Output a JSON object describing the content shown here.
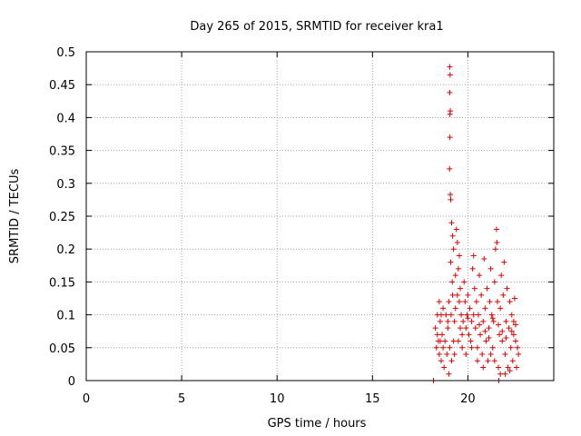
{
  "chart_data": {
    "type": "scatter",
    "title": "Day 265 of 2015, SRMTID for receiver kra1",
    "xlabel": "GPS time / hours",
    "ylabel": "SRMTID / TECUs",
    "xlim": [
      0,
      24.5
    ],
    "ylim": [
      0,
      0.5
    ],
    "xticks": [
      0,
      5,
      10,
      15,
      20
    ],
    "yticks": [
      0,
      0.05,
      0.1,
      0.15,
      0.2,
      0.25,
      0.3,
      0.35,
      0.4,
      0.45,
      0.5
    ],
    "ytick_labels": [
      "0",
      "0.05",
      "0.1",
      "0.15",
      "0.2",
      "0.25",
      "0.3",
      "0.35",
      "0.4",
      "0.45",
      "0.5"
    ],
    "grid": true,
    "marker": "plus",
    "series_color": "#e00000",
    "series": [
      {
        "name": "SRMTID",
        "points": [
          [
            18.2,
            0.0
          ],
          [
            18.3,
            0.08
          ],
          [
            18.35,
            0.05
          ],
          [
            18.4,
            0.1
          ],
          [
            18.45,
            0.06
          ],
          [
            18.5,
            0.04
          ],
          [
            18.55,
            0.09
          ],
          [
            18.6,
            0.03
          ],
          [
            18.65,
            0.07
          ],
          [
            18.7,
            0.05
          ],
          [
            18.75,
            0.02
          ],
          [
            18.8,
            0.06
          ],
          [
            18.85,
            0.1
          ],
          [
            18.9,
            0.04
          ],
          [
            18.95,
            0.08
          ],
          [
            19.0,
            0.01
          ],
          [
            19.0,
            0.12
          ],
          [
            19.05,
            0.05
          ],
          [
            18.5,
            0.12
          ],
          [
            18.6,
            0.1
          ],
          [
            18.7,
            0.11
          ],
          [
            18.4,
            0.07
          ],
          [
            18.55,
            0.06
          ],
          [
            18.95,
            0.09
          ],
          [
            19.05,
            0.477
          ],
          [
            19.07,
            0.465
          ],
          [
            19.05,
            0.438
          ],
          [
            19.08,
            0.41
          ],
          [
            19.06,
            0.405
          ],
          [
            19.06,
            0.37
          ],
          [
            19.04,
            0.322
          ],
          [
            19.08,
            0.283
          ],
          [
            19.1,
            0.275
          ],
          [
            19.15,
            0.24
          ],
          [
            19.2,
            0.22
          ],
          [
            19.25,
            0.2
          ],
          [
            19.1,
            0.18
          ],
          [
            19.18,
            0.15
          ],
          [
            19.2,
            0.13
          ],
          [
            19.12,
            0.1
          ],
          [
            19.3,
            0.09
          ],
          [
            19.35,
            0.16
          ],
          [
            19.4,
            0.23
          ],
          [
            19.45,
            0.21
          ],
          [
            19.5,
            0.17
          ],
          [
            19.55,
            0.19
          ],
          [
            19.6,
            0.08
          ],
          [
            19.25,
            0.06
          ],
          [
            19.3,
            0.04
          ],
          [
            19.15,
            0.03
          ],
          [
            19.35,
            0.11
          ],
          [
            19.45,
            0.13
          ],
          [
            19.5,
            0.06
          ],
          [
            19.55,
            0.12
          ],
          [
            19.6,
            0.14
          ],
          [
            19.65,
            0.1
          ],
          [
            19.7,
            0.05
          ],
          [
            19.75,
            0.09
          ],
          [
            19.8,
            0.15
          ],
          [
            19.85,
            0.12
          ],
          [
            19.9,
            0.08
          ],
          [
            19.95,
            0.1
          ],
          [
            20.0,
            0.13
          ],
          [
            20.05,
            0.07
          ],
          [
            20.1,
            0.11
          ],
          [
            20.15,
            0.06
          ],
          [
            20.2,
            0.09
          ],
          [
            20.25,
            0.17
          ],
          [
            20.3,
            0.19
          ],
          [
            20.35,
            0.14
          ],
          [
            20.4,
            0.08
          ],
          [
            20.45,
            0.12
          ],
          [
            20.5,
            0.05
          ],
          [
            20.55,
            0.1
          ],
          [
            20.6,
            0.16
          ],
          [
            20.65,
            0.07
          ],
          [
            20.7,
            0.13
          ],
          [
            20.75,
            0.04
          ],
          [
            20.8,
            0.09
          ],
          [
            20.85,
            0.185
          ],
          [
            20.9,
            0.11
          ],
          [
            20.95,
            0.06
          ],
          [
            21.0,
            0.14
          ],
          [
            21.05,
            0.03
          ],
          [
            21.1,
            0.08
          ],
          [
            21.15,
            0.12
          ],
          [
            21.2,
            0.17
          ],
          [
            21.25,
            0.1
          ],
          [
            21.3,
            0.05
          ],
          [
            21.35,
            0.09
          ],
          [
            21.4,
            0.15
          ],
          [
            21.45,
            0.2
          ],
          [
            21.5,
            0.23
          ],
          [
            21.52,
            0.21
          ],
          [
            21.55,
            0.12
          ],
          [
            21.6,
            0.02
          ],
          [
            21.62,
            0.0
          ],
          [
            21.65,
            0.07
          ],
          [
            21.7,
            0.11
          ],
          [
            21.75,
            0.16
          ],
          [
            21.8,
            0.06
          ],
          [
            21.85,
            0.13
          ],
          [
            21.9,
            0.18
          ],
          [
            21.95,
            0.04
          ],
          [
            22.0,
            0.09
          ],
          [
            22.05,
            0.14
          ],
          [
            22.1,
            0.02
          ],
          [
            22.15,
            0.08
          ],
          [
            22.2,
            0.12
          ],
          [
            22.25,
            0.05
          ],
          [
            22.3,
            0.1
          ],
          [
            22.35,
            0.03
          ],
          [
            22.4,
            0.07
          ],
          [
            22.45,
            0.125
          ],
          [
            22.5,
            0.06
          ],
          [
            22.55,
            0.02
          ],
          [
            22.6,
            0.05
          ],
          [
            22.65,
            0.04
          ],
          [
            22.4,
            0.09
          ],
          [
            22.2,
            0.015
          ],
          [
            21.95,
            0.01
          ],
          [
            21.7,
            0.01
          ],
          [
            21.4,
            0.03
          ],
          [
            21.2,
            0.04
          ],
          [
            20.8,
            0.02
          ],
          [
            20.5,
            0.03
          ],
          [
            20.2,
            0.05
          ],
          [
            19.9,
            0.04
          ],
          [
            19.7,
            0.07
          ],
          [
            20.0,
            0.095
          ],
          [
            20.3,
            0.1
          ],
          [
            20.6,
            0.085
          ],
          [
            20.9,
            0.075
          ],
          [
            21.1,
            0.065
          ],
          [
            21.3,
            0.095
          ],
          [
            21.6,
            0.085
          ],
          [
            21.8,
            0.075
          ],
          [
            22.0,
            0.065
          ],
          [
            22.3,
            0.075
          ],
          [
            22.5,
            0.085
          ]
        ]
      }
    ]
  }
}
